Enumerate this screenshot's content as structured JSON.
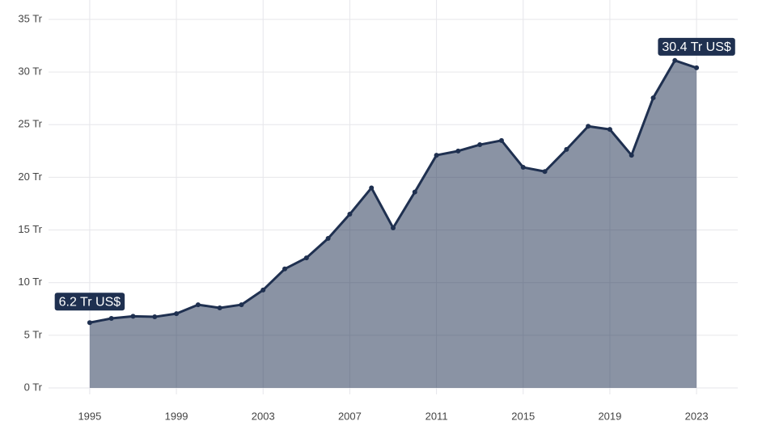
{
  "chart_data": {
    "type": "area",
    "x": [
      1995,
      1996,
      1997,
      1998,
      1999,
      2000,
      2001,
      2002,
      2003,
      2004,
      2005,
      2006,
      2007,
      2008,
      2009,
      2010,
      2011,
      2012,
      2013,
      2014,
      2015,
      2016,
      2017,
      2018,
      2019,
      2020,
      2021,
      2022,
      2023
    ],
    "values": [
      6.2,
      6.6,
      6.8,
      6.75,
      7.05,
      7.9,
      7.6,
      7.9,
      9.3,
      11.3,
      12.35,
      14.2,
      16.5,
      19.0,
      15.2,
      18.6,
      22.1,
      22.5,
      23.1,
      23.5,
      20.95,
      20.55,
      22.65,
      24.85,
      24.55,
      22.1,
      27.55,
      31.1,
      30.4
    ],
    "value_labels": [
      "6.2 Tr US$",
      null,
      null,
      null,
      null,
      null,
      null,
      null,
      null,
      null,
      null,
      null,
      null,
      null,
      null,
      null,
      null,
      null,
      null,
      null,
      null,
      null,
      null,
      null,
      null,
      null,
      null,
      null,
      "30.4 Tr US$"
    ],
    "color": "#1f3050",
    "xlim": [
      1993.1,
      2024.9
    ],
    "xticks": [
      1995,
      1999,
      2003,
      2007,
      2011,
      2015,
      2019,
      2023
    ],
    "ylim": [
      0,
      35
    ],
    "yticks": [
      {
        "value": 0,
        "label": "0 Tr"
      },
      {
        "value": 5,
        "label": "5 Tr"
      },
      {
        "value": 10,
        "label": "10 Tr"
      },
      {
        "value": 15,
        "label": "15 Tr"
      },
      {
        "value": 20,
        "label": "20 Tr"
      },
      {
        "value": 25,
        "label": "25 Tr"
      },
      {
        "value": 30,
        "label": "30 Tr"
      },
      {
        "value": 35,
        "label": "35 Tr"
      }
    ],
    "grid": true
  }
}
